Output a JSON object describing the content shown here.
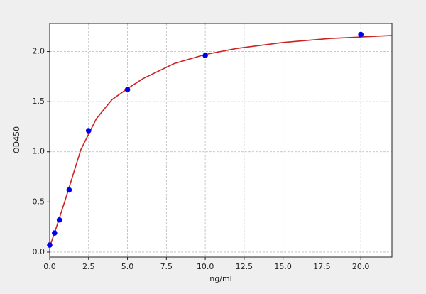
{
  "chart_data": {
    "type": "scatter",
    "xlabel": "ng/ml",
    "ylabel": "OD450",
    "xlim": [
      0,
      22
    ],
    "ylim": [
      -0.05,
      2.28
    ],
    "xticks": [
      {
        "value": 0,
        "label": "0.0"
      },
      2.5,
      {
        "value": 5,
        "label": "5.0"
      },
      7.5,
      {
        "value": 10,
        "label": "10.0"
      },
      12.5,
      {
        "value": 15,
        "label": "15.0"
      },
      17.5,
      {
        "value": 20,
        "label": "20.0"
      }
    ],
    "yticks": [
      {
        "value": 0,
        "label": "0.0"
      },
      0.5,
      {
        "value": 1,
        "label": "1.0"
      },
      1.5,
      {
        "value": 2,
        "label": "2.0"
      }
    ],
    "grid": true,
    "series": [
      {
        "type": "line",
        "color": "#cc2222",
        "x": [
          0,
          0.5,
          1,
          2,
          3,
          4,
          5,
          6,
          8,
          10,
          12,
          15,
          18,
          22
        ],
        "values": [
          0.05,
          0.28,
          0.52,
          1.02,
          1.33,
          1.52,
          1.63,
          1.73,
          1.88,
          1.97,
          2.03,
          2.09,
          2.13,
          2.16
        ]
      },
      {
        "type": "scatter",
        "color": "#0000ee",
        "x": [
          0,
          0.312,
          0.625,
          1.25,
          2.5,
          5,
          10,
          20
        ],
        "values": [
          0.07,
          0.19,
          0.32,
          0.62,
          1.21,
          1.62,
          1.96,
          2.17
        ]
      }
    ]
  }
}
